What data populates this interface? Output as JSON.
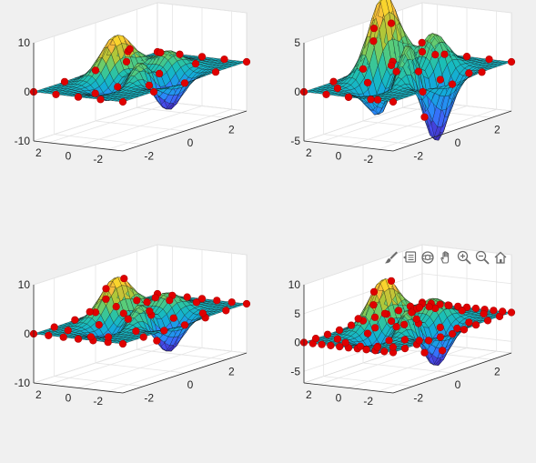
{
  "figure": {
    "background": "#f0f0f0",
    "axes_toolbar": [
      {
        "name": "brush-icon",
        "tooltip": "Brush"
      },
      {
        "name": "data-tips-icon",
        "tooltip": "Data Tips"
      },
      {
        "name": "rotate-3d-icon",
        "tooltip": "Rotate 3D"
      },
      {
        "name": "pan-icon",
        "tooltip": "Pan"
      },
      {
        "name": "zoom-in-icon",
        "tooltip": "Zoom In"
      },
      {
        "name": "zoom-out-icon",
        "tooltip": "Zoom Out"
      },
      {
        "name": "restore-view-icon",
        "tooltip": "Restore View"
      }
    ]
  },
  "chart_data": [
    {
      "type": "surface",
      "function": "peaks",
      "x_range": [
        -3,
        3
      ],
      "y_range": [
        -3,
        3
      ],
      "grid_resolution": 25,
      "colormap": "parula",
      "zlim": [
        -10,
        10
      ],
      "xticks": [
        "-2",
        "0",
        "2"
      ],
      "yticks": [
        "-2",
        "0",
        "2"
      ],
      "zticks": [
        "-10",
        "0",
        "10"
      ],
      "sample_points_color": "#e00000",
      "sample_points": [
        [
          -3,
          -3
        ],
        [
          -3,
          -1.5
        ],
        [
          -3,
          0
        ],
        [
          -3,
          1.5
        ],
        [
          -3,
          3
        ],
        [
          -1.5,
          -3
        ],
        [
          -1.5,
          3
        ],
        [
          0,
          -3
        ],
        [
          0,
          3
        ],
        [
          1.5,
          -3
        ],
        [
          1.5,
          3
        ],
        [
          3,
          -3
        ],
        [
          3,
          -1.5
        ],
        [
          3,
          0
        ],
        [
          3,
          1.5
        ],
        [
          3,
          3
        ],
        [
          -0.8,
          0.4
        ],
        [
          0.5,
          -0.6
        ],
        [
          0.2,
          1.1
        ],
        [
          1.2,
          0.3
        ],
        [
          -0.5,
          -1.3
        ],
        [
          0.8,
          1.8
        ],
        [
          -1.6,
          0.8
        ],
        [
          1.9,
          -1.1
        ]
      ]
    },
    {
      "type": "surface",
      "function": "peaks",
      "x_range": [
        -3,
        3
      ],
      "y_range": [
        -3,
        3
      ],
      "grid_resolution": 25,
      "colormap": "parula",
      "zlim": [
        -5,
        5
      ],
      "xticks": [
        "-2",
        "0",
        "2"
      ],
      "yticks": [
        "-2",
        "0",
        "2"
      ],
      "zticks": [
        "-5",
        "0",
        "5"
      ],
      "sample_points_color": "#e00000",
      "sample_points": [
        [
          -3,
          -3
        ],
        [
          -3,
          -1.5
        ],
        [
          -3,
          0
        ],
        [
          -3,
          1.5
        ],
        [
          -3,
          3
        ],
        [
          -1.5,
          -3
        ],
        [
          -1.5,
          3
        ],
        [
          0,
          -3
        ],
        [
          0,
          3
        ],
        [
          1.5,
          -3
        ],
        [
          1.5,
          3
        ],
        [
          3,
          -3
        ],
        [
          3,
          -1.5
        ],
        [
          3,
          0
        ],
        [
          3,
          1.5
        ],
        [
          3,
          3
        ],
        [
          -0.5,
          1.6
        ],
        [
          0.3,
          1.5
        ],
        [
          -1.2,
          1.1
        ],
        [
          -0.8,
          -0.3
        ],
        [
          0.4,
          -0.2
        ],
        [
          1.1,
          0.5
        ],
        [
          -0.2,
          -1.4
        ],
        [
          0.9,
          -1.0
        ],
        [
          -1.9,
          -0.5
        ],
        [
          2.0,
          0.8
        ],
        [
          0.0,
          2.3
        ],
        [
          -2.2,
          1.8
        ],
        [
          1.6,
          -2.0
        ],
        [
          -0.3,
          0.7
        ]
      ]
    },
    {
      "type": "surface",
      "function": "peaks",
      "x_range": [
        -3,
        3
      ],
      "y_range": [
        -3,
        3
      ],
      "grid_resolution": 25,
      "colormap": "parula",
      "zlim": [
        -10,
        10
      ],
      "xticks": [
        "-2",
        "0",
        "2"
      ],
      "yticks": [
        "-2",
        "0",
        "2"
      ],
      "zticks": [
        "-10",
        "0",
        "10"
      ],
      "sample_points_color": "#e00000",
      "sample_points": [
        [
          -3,
          -3
        ],
        [
          -3,
          -2
        ],
        [
          -3,
          -1
        ],
        [
          -3,
          0
        ],
        [
          -3,
          1
        ],
        [
          -3,
          2
        ],
        [
          -3,
          3
        ],
        [
          -2,
          -3
        ],
        [
          -2,
          3
        ],
        [
          -1,
          -3
        ],
        [
          -1,
          3
        ],
        [
          0,
          -3
        ],
        [
          0,
          3
        ],
        [
          1,
          -3
        ],
        [
          1,
          3
        ],
        [
          2,
          -3
        ],
        [
          2,
          3
        ],
        [
          3,
          -3
        ],
        [
          3,
          -2
        ],
        [
          3,
          -1
        ],
        [
          3,
          0
        ],
        [
          3,
          1
        ],
        [
          3,
          2
        ],
        [
          3,
          3
        ],
        [
          -0.5,
          1.6
        ],
        [
          0.3,
          1.5
        ],
        [
          -1.2,
          1.1
        ],
        [
          -0.8,
          -0.3
        ],
        [
          0.4,
          -0.2
        ],
        [
          1.1,
          0.5
        ],
        [
          -0.2,
          -1.4
        ],
        [
          0.9,
          -1.0
        ],
        [
          -1.9,
          -0.5
        ],
        [
          2.0,
          0.8
        ],
        [
          0.0,
          2.3
        ],
        [
          -2.2,
          1.8
        ],
        [
          1.6,
          -2.0
        ],
        [
          -0.3,
          0.7
        ],
        [
          -1.5,
          -1.8
        ],
        [
          1.7,
          1.9
        ],
        [
          -2.1,
          0.4
        ],
        [
          2.3,
          -0.6
        ],
        [
          0.6,
          0.2
        ],
        [
          -1.0,
          2.0
        ]
      ]
    },
    {
      "type": "surface",
      "function": "peaks",
      "x_range": [
        -3,
        3
      ],
      "y_range": [
        -3,
        3
      ],
      "grid_resolution": 25,
      "colormap": "parula",
      "zlim": [
        -7,
        10
      ],
      "xticks": [
        "-2",
        "0",
        "2"
      ],
      "yticks": [
        "-2",
        "0",
        "2"
      ],
      "zticks": [
        "-5",
        "0",
        "5",
        "10"
      ],
      "sample_points_color": "#e00000",
      "sample_points": [
        [
          -3,
          -3
        ],
        [
          -3,
          -2.4
        ],
        [
          -3,
          -1.8
        ],
        [
          -3,
          -1.2
        ],
        [
          -3,
          -0.6
        ],
        [
          -3,
          0
        ],
        [
          -3,
          0.6
        ],
        [
          -3,
          1.2
        ],
        [
          -3,
          1.8
        ],
        [
          -3,
          2.4
        ],
        [
          -3,
          3
        ],
        [
          -2.4,
          -3
        ],
        [
          -2.4,
          3
        ],
        [
          -1.8,
          -3
        ],
        [
          -1.8,
          3
        ],
        [
          -1.2,
          -3
        ],
        [
          -1.2,
          3
        ],
        [
          -0.6,
          -3
        ],
        [
          -0.6,
          3
        ],
        [
          0,
          -3
        ],
        [
          0,
          3
        ],
        [
          0.6,
          -3
        ],
        [
          0.6,
          3
        ],
        [
          1.2,
          -3
        ],
        [
          1.2,
          3
        ],
        [
          1.8,
          -3
        ],
        [
          1.8,
          3
        ],
        [
          2.4,
          -3
        ],
        [
          2.4,
          3
        ],
        [
          3,
          -3
        ],
        [
          3,
          -2.4
        ],
        [
          3,
          -1.8
        ],
        [
          3,
          -1.2
        ],
        [
          3,
          -0.6
        ],
        [
          3,
          0
        ],
        [
          3,
          0.6
        ],
        [
          3,
          1.2
        ],
        [
          3,
          1.8
        ],
        [
          3,
          2.4
        ],
        [
          3,
          3
        ],
        [
          -0.5,
          1.6
        ],
        [
          0.3,
          1.5
        ],
        [
          -1.2,
          1.1
        ],
        [
          -0.8,
          -0.3
        ],
        [
          0.4,
          -0.2
        ],
        [
          1.1,
          0.5
        ],
        [
          -0.2,
          -1.4
        ],
        [
          0.9,
          -1.0
        ],
        [
          -1.9,
          -0.5
        ],
        [
          2.0,
          0.8
        ],
        [
          0.0,
          2.3
        ],
        [
          -2.2,
          1.8
        ],
        [
          1.6,
          -2.0
        ],
        [
          -0.3,
          0.7
        ],
        [
          -1.5,
          -1.8
        ],
        [
          1.7,
          1.9
        ],
        [
          -2.1,
          0.4
        ],
        [
          2.3,
          -0.6
        ],
        [
          0.6,
          0.2
        ],
        [
          -1.0,
          2.0
        ],
        [
          -2.4,
          -2.2
        ],
        [
          2.2,
          2.3
        ],
        [
          -1.7,
          -1.0
        ],
        [
          1.3,
          -1.6
        ],
        [
          0.1,
          -2.2
        ],
        [
          -0.9,
          1.0
        ],
        [
          1.5,
          1.2
        ],
        [
          -2.4,
          1.0
        ],
        [
          2.5,
          -1.8
        ],
        [
          0.8,
          2.6
        ],
        [
          -0.4,
          -0.8
        ],
        [
          -1.3,
          -2.5
        ],
        [
          1.9,
          -0.2
        ],
        [
          -2.6,
          -1.4
        ],
        [
          0.2,
          0.5
        ],
        [
          2.6,
          2.0
        ]
      ]
    }
  ]
}
